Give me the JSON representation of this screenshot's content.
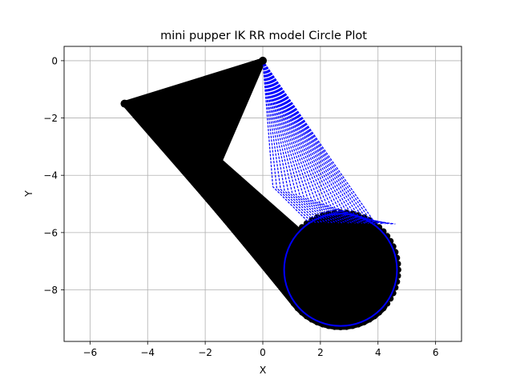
{
  "chart_data": {
    "type": "line",
    "title": "mini pupper IK RR model Circle Plot",
    "xlabel": "X",
    "ylabel": "Y",
    "xlim": [
      -6.9,
      6.9
    ],
    "ylim": [
      -9.8,
      0.5
    ],
    "xticks": [
      -6,
      -4,
      -2,
      0,
      2,
      4,
      6
    ],
    "yticks": [
      0,
      -2,
      -4,
      -6,
      -8
    ],
    "xtick_labels": [
      "−6",
      "−4",
      "−2",
      "0",
      "2",
      "4",
      "6"
    ],
    "ytick_labels": [
      "0",
      "−2",
      "−4",
      "−6",
      "−8"
    ],
    "grid": true,
    "circle": {
      "center": [
        2.7,
        -7.3
      ],
      "radius": 2.0
    },
    "leg_fan_blue": {
      "apex": [
        0,
        0
      ],
      "elbow_sweep": [
        [
          0.35,
          -4.4
        ],
        [
          3.85,
          -5.6
        ]
      ],
      "foot_sweep": [
        [
          1.6,
          -5.65
        ],
        [
          4.6,
          -5.7
        ]
      ]
    },
    "leg_fan_black": {
      "apex": [
        0,
        0
      ],
      "elbow_sweep": [
        [
          -4.8,
          -1.5
        ],
        [
          -1.5,
          -3.5
        ]
      ],
      "foot": "circle"
    },
    "colors": {
      "blue": "#0000ff",
      "black": "#000000",
      "grid": "#b0b0b0"
    }
  }
}
